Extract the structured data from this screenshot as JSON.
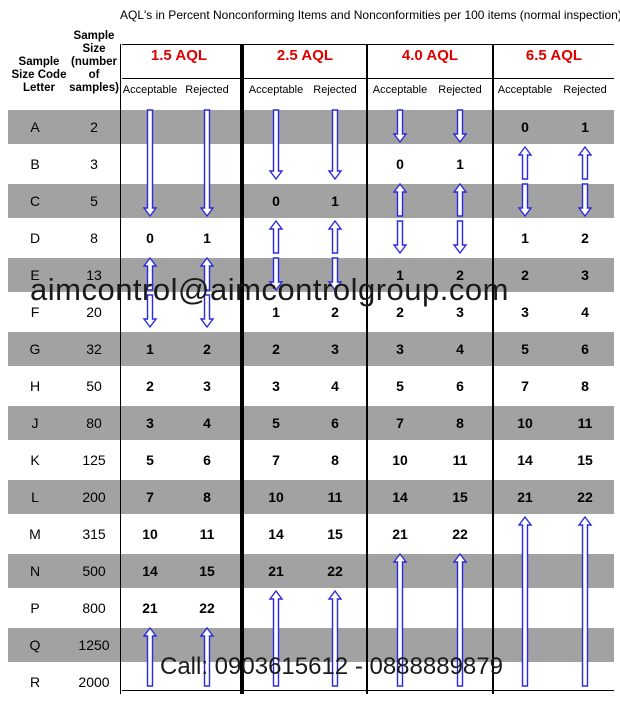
{
  "title": "AQL's in Percent Nonconforming Items and Nonconformities per 100 items (normal inspection)",
  "headers": {
    "code": [
      "Sample",
      "Size Code",
      "Letter"
    ],
    "size": [
      "Sample",
      "Size",
      "(number",
      "of",
      "samples)"
    ],
    "acceptable": "Acceptable",
    "rejected": "Rejected"
  },
  "aql_levels": [
    "1.5 AQL",
    "2.5 AQL",
    "4.0 AQL",
    "6.5 AQL"
  ],
  "rows": [
    {
      "code": "A",
      "size": "2",
      "cells": [
        "",
        "",
        "",
        "",
        "",
        "",
        "0",
        "1"
      ]
    },
    {
      "code": "B",
      "size": "3",
      "cells": [
        "",
        "",
        "",
        "",
        "0",
        "1",
        "",
        ""
      ]
    },
    {
      "code": "C",
      "size": "5",
      "cells": [
        "",
        "",
        "0",
        "1",
        "",
        "",
        "",
        ""
      ]
    },
    {
      "code": "D",
      "size": "8",
      "cells": [
        "0",
        "1",
        "",
        "",
        "",
        "",
        "1",
        "2"
      ]
    },
    {
      "code": "E",
      "size": "13",
      "cells": [
        "",
        "",
        "",
        "",
        "1",
        "2",
        "2",
        "3"
      ]
    },
    {
      "code": "F",
      "size": "20",
      "cells": [
        "",
        "",
        "1",
        "2",
        "2",
        "3",
        "3",
        "4"
      ]
    },
    {
      "code": "G",
      "size": "32",
      "cells": [
        "1",
        "2",
        "2",
        "3",
        "3",
        "4",
        "5",
        "6"
      ]
    },
    {
      "code": "H",
      "size": "50",
      "cells": [
        "2",
        "3",
        "3",
        "4",
        "5",
        "6",
        "7",
        "8"
      ]
    },
    {
      "code": "J",
      "size": "80",
      "cells": [
        "3",
        "4",
        "5",
        "6",
        "7",
        "8",
        "10",
        "11"
      ]
    },
    {
      "code": "K",
      "size": "125",
      "cells": [
        "5",
        "6",
        "7",
        "8",
        "10",
        "11",
        "14",
        "15"
      ]
    },
    {
      "code": "L",
      "size": "200",
      "cells": [
        "7",
        "8",
        "10",
        "11",
        "14",
        "15",
        "21",
        "22"
      ]
    },
    {
      "code": "M",
      "size": "315",
      "cells": [
        "10",
        "11",
        "14",
        "15",
        "21",
        "22",
        "",
        ""
      ]
    },
    {
      "code": "N",
      "size": "500",
      "cells": [
        "14",
        "15",
        "21",
        "22",
        "",
        "",
        "",
        ""
      ]
    },
    {
      "code": "P",
      "size": "800",
      "cells": [
        "21",
        "22",
        "",
        "",
        "",
        "",
        "",
        ""
      ]
    },
    {
      "code": "Q",
      "size": "1250",
      "cells": [
        "",
        "",
        "",
        "",
        "",
        "",
        "",
        ""
      ]
    },
    {
      "code": "R",
      "size": "2000",
      "cells": [
        "",
        "",
        "",
        "",
        "",
        "",
        "",
        ""
      ]
    }
  ],
  "arrows": [
    {
      "col": 0,
      "dir": "down",
      "from_row": 0,
      "to_row": 2
    },
    {
      "col": 1,
      "dir": "down",
      "from_row": 0,
      "to_row": 2
    },
    {
      "col": 2,
      "dir": "down",
      "from_row": 0,
      "to_row": 1
    },
    {
      "col": 3,
      "dir": "down",
      "from_row": 0,
      "to_row": 1
    },
    {
      "col": 4,
      "dir": "down",
      "from_row": 0,
      "to_row": 0
    },
    {
      "col": 5,
      "dir": "down",
      "from_row": 0,
      "to_row": 0
    },
    {
      "col": 6,
      "dir": "up",
      "from_row": 1,
      "to_row": 1
    },
    {
      "col": 7,
      "dir": "up",
      "from_row": 1,
      "to_row": 1
    },
    {
      "col": 6,
      "dir": "down",
      "from_row": 2,
      "to_row": 2
    },
    {
      "col": 7,
      "dir": "down",
      "from_row": 2,
      "to_row": 2
    },
    {
      "col": 4,
      "dir": "up",
      "from_row": 2,
      "to_row": 2
    },
    {
      "col": 5,
      "dir": "up",
      "from_row": 2,
      "to_row": 2
    },
    {
      "col": 4,
      "dir": "down",
      "from_row": 3,
      "to_row": 3
    },
    {
      "col": 5,
      "dir": "down",
      "from_row": 3,
      "to_row": 3
    },
    {
      "col": 2,
      "dir": "up",
      "from_row": 3,
      "to_row": 3
    },
    {
      "col": 3,
      "dir": "up",
      "from_row": 3,
      "to_row": 3
    },
    {
      "col": 2,
      "dir": "down",
      "from_row": 4,
      "to_row": 4
    },
    {
      "col": 3,
      "dir": "down",
      "from_row": 4,
      "to_row": 4
    },
    {
      "col": 0,
      "dir": "up",
      "from_row": 4,
      "to_row": 4
    },
    {
      "col": 1,
      "dir": "up",
      "from_row": 4,
      "to_row": 4
    },
    {
      "col": 0,
      "dir": "down",
      "from_row": 5,
      "to_row": 5
    },
    {
      "col": 1,
      "dir": "down",
      "from_row": 5,
      "to_row": 5
    },
    {
      "col": 6,
      "dir": "up",
      "from_row": 11,
      "to_row": 15
    },
    {
      "col": 7,
      "dir": "up",
      "from_row": 11,
      "to_row": 15
    },
    {
      "col": 4,
      "dir": "up",
      "from_row": 12,
      "to_row": 15
    },
    {
      "col": 5,
      "dir": "up",
      "from_row": 12,
      "to_row": 15
    },
    {
      "col": 2,
      "dir": "up",
      "from_row": 13,
      "to_row": 15
    },
    {
      "col": 3,
      "dir": "up",
      "from_row": 13,
      "to_row": 15
    },
    {
      "col": 0,
      "dir": "up",
      "from_row": 14,
      "to_row": 15
    },
    {
      "col": 1,
      "dir": "up",
      "from_row": 14,
      "to_row": 15
    }
  ],
  "watermark_email": "aimcontrol@aimcontrolgroup.com",
  "watermark_phone": "Call: 0903615612 - 0888889879",
  "arrow_color": "#2a2ae0"
}
